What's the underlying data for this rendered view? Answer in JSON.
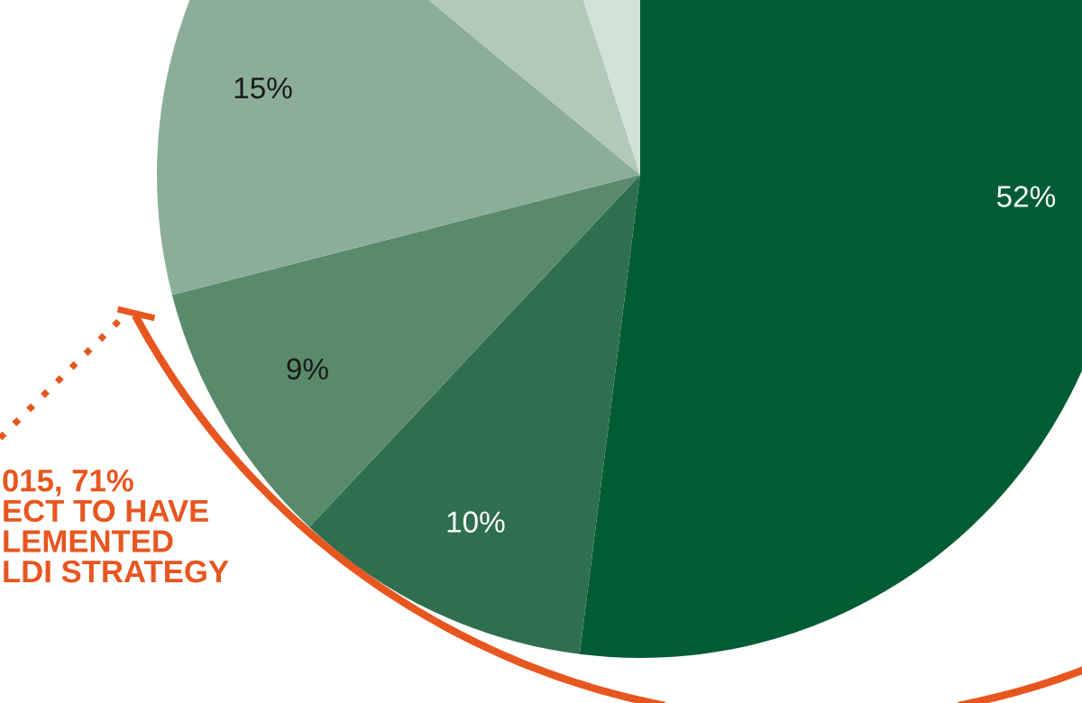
{
  "chart_data": {
    "type": "pie",
    "categories": [
      null,
      null,
      null,
      null,
      null,
      null
    ],
    "values": [
      52,
      10,
      9,
      15,
      9,
      5
    ],
    "colors": [
      "#005c35",
      "#2f6f4f",
      "#5a8a6c",
      "#8cae98",
      "#b2c9b9",
      "#d3e2d7"
    ],
    "value_labels": [
      "52%",
      "10%",
      "9%",
      "15%",
      null,
      null
    ],
    "annotations": [
      "015, 71%\nECT TO HAVE\nLEMENTED\nLDI STRATEGY"
    ]
  }
}
